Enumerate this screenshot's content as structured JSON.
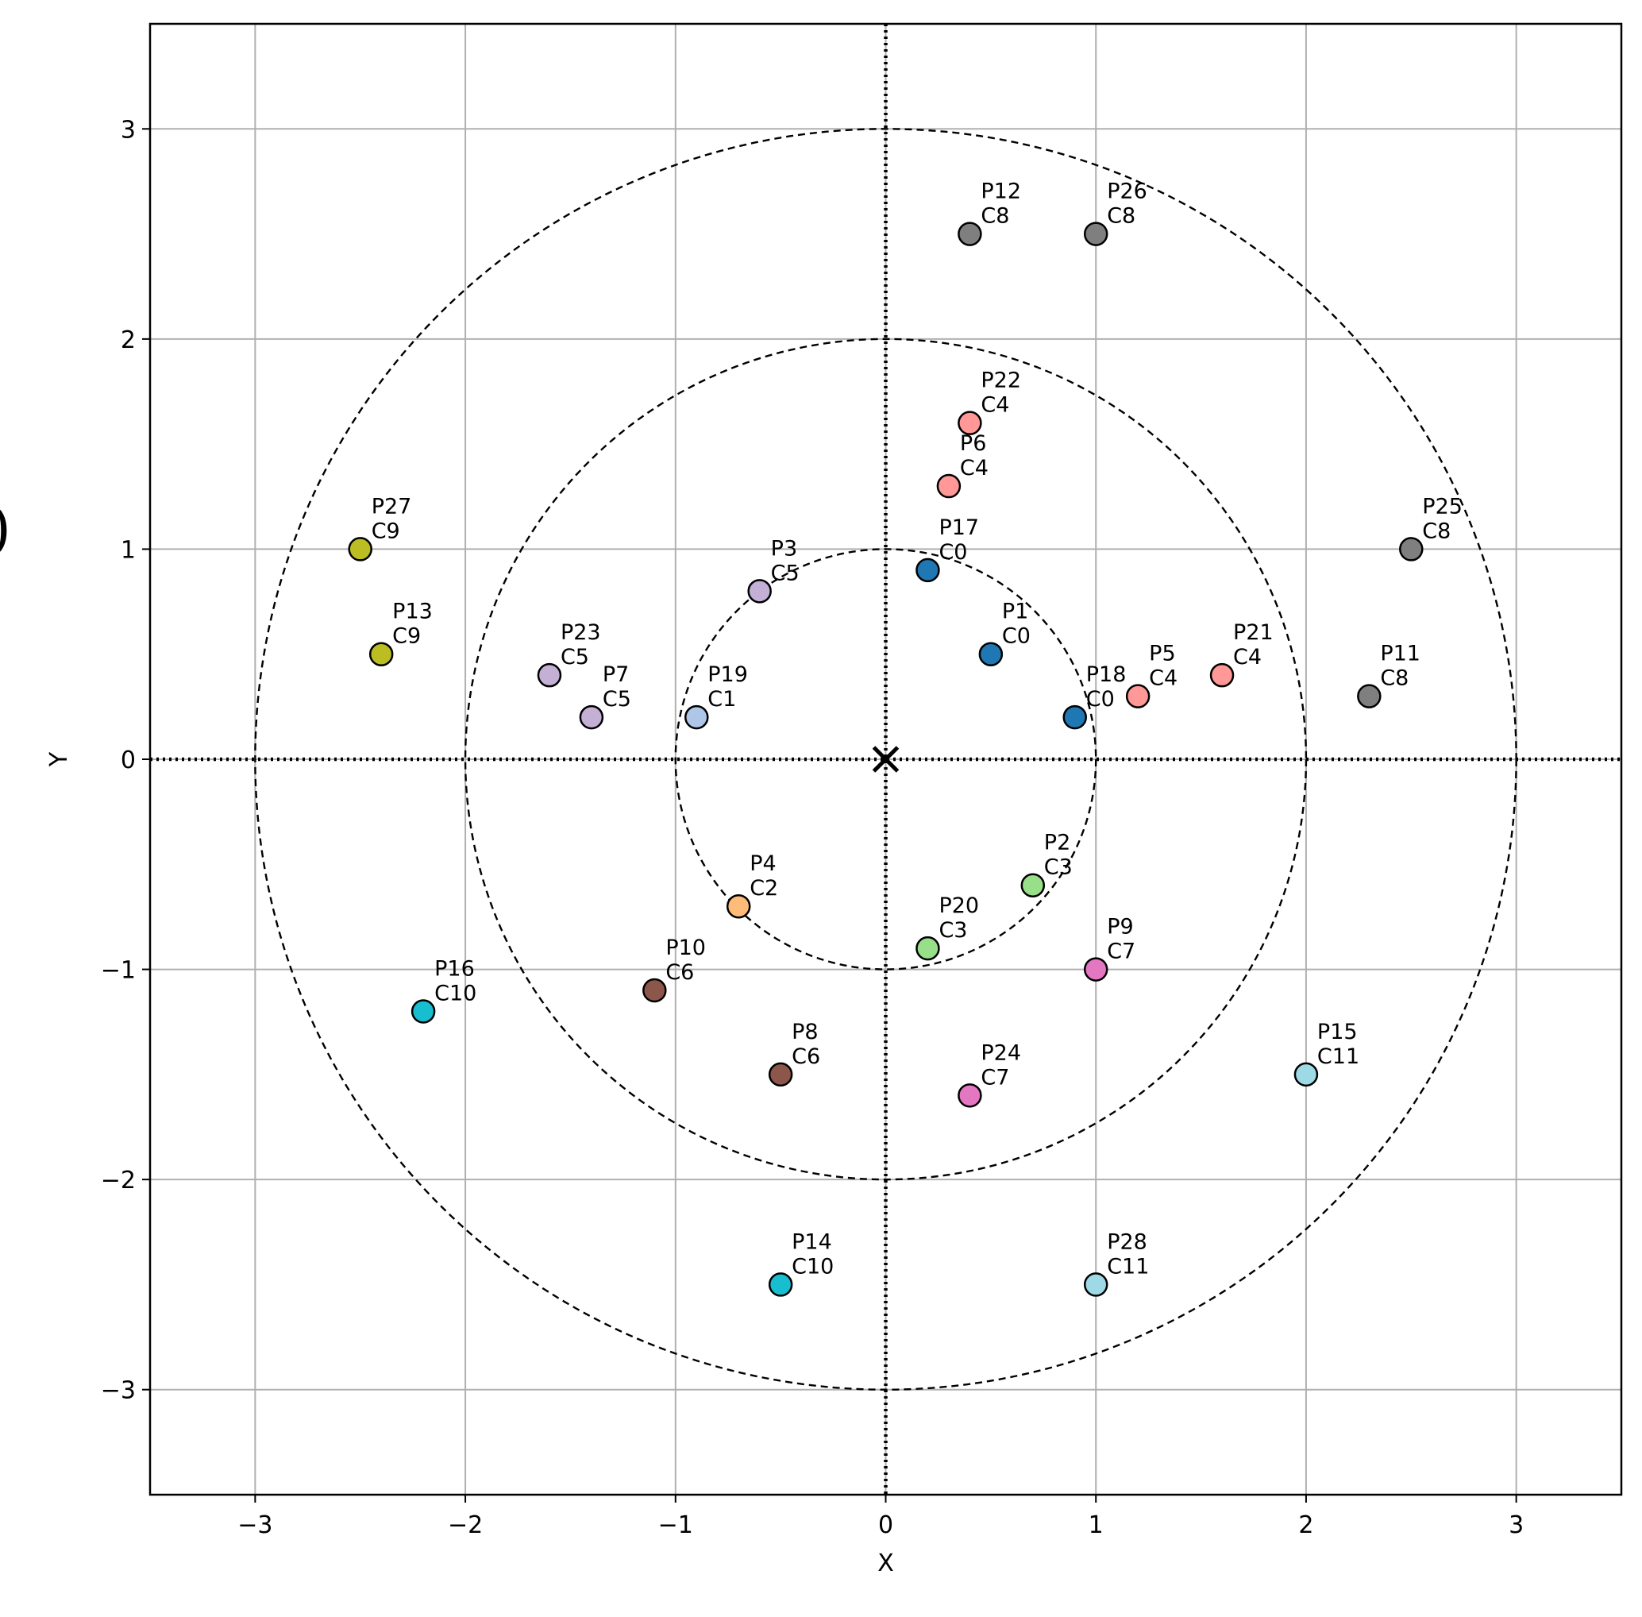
{
  "chart_data": {
    "type": "scatter",
    "xlabel": "X",
    "ylabel": "Y",
    "xlim": [
      -3.5,
      3.5
    ],
    "ylim": [
      -3.5,
      3.5
    ],
    "xticks": [
      "−3",
      "−2",
      "−1",
      "0",
      "1",
      "2",
      "3"
    ],
    "yticks": [
      "−3",
      "−2",
      "−1",
      "0",
      "1",
      "2",
      "3"
    ],
    "grid": true,
    "origin_marker": "x",
    "circles_radii": [
      1,
      2,
      3
    ],
    "margin_glyph": ")",
    "cluster_colors": {
      "C0": "#1f77b4",
      "C1": "#aec7e8",
      "C2": "#ffbb78",
      "C3": "#98df8a",
      "C4": "#ff9896",
      "C5": "#c5b0d5",
      "C6": "#8c564b",
      "C7": "#e377c2",
      "C8": "#7f7f7f",
      "C9": "#bcbd22",
      "C10": "#17becf",
      "C11": "#9edae5"
    },
    "points": [
      {
        "id": "P1",
        "cluster": "C0",
        "x": 0.5,
        "y": 0.5
      },
      {
        "id": "P2",
        "cluster": "C3",
        "x": 0.7,
        "y": -0.6
      },
      {
        "id": "P3",
        "cluster": "C5",
        "x": -0.6,
        "y": 0.8
      },
      {
        "id": "P4",
        "cluster": "C2",
        "x": -0.7,
        "y": -0.7
      },
      {
        "id": "P5",
        "cluster": "C4",
        "x": 1.2,
        "y": 0.3
      },
      {
        "id": "P6",
        "cluster": "C4",
        "x": 0.3,
        "y": 1.3
      },
      {
        "id": "P7",
        "cluster": "C5",
        "x": -1.4,
        "y": 0.2
      },
      {
        "id": "P8",
        "cluster": "C6",
        "x": -0.5,
        "y": -1.5
      },
      {
        "id": "P9",
        "cluster": "C7",
        "x": 1.0,
        "y": -1.0
      },
      {
        "id": "P10",
        "cluster": "C6",
        "x": -1.1,
        "y": -1.1
      },
      {
        "id": "P11",
        "cluster": "C8",
        "x": 2.3,
        "y": 0.3
      },
      {
        "id": "P12",
        "cluster": "C8",
        "x": 0.4,
        "y": 2.5
      },
      {
        "id": "P13",
        "cluster": "C9",
        "x": -2.4,
        "y": 0.5
      },
      {
        "id": "P14",
        "cluster": "C10",
        "x": -0.5,
        "y": -2.5
      },
      {
        "id": "P15",
        "cluster": "C11",
        "x": 2.0,
        "y": -1.5
      },
      {
        "id": "P16",
        "cluster": "C10",
        "x": -2.2,
        "y": -1.2
      },
      {
        "id": "P17",
        "cluster": "C0",
        "x": 0.2,
        "y": 0.9
      },
      {
        "id": "P18",
        "cluster": "C0",
        "x": 0.9,
        "y": 0.2
      },
      {
        "id": "P19",
        "cluster": "C1",
        "x": -0.9,
        "y": 0.2
      },
      {
        "id": "P20",
        "cluster": "C3",
        "x": 0.2,
        "y": -0.9
      },
      {
        "id": "P21",
        "cluster": "C4",
        "x": 1.6,
        "y": 0.4
      },
      {
        "id": "P22",
        "cluster": "C4",
        "x": 0.4,
        "y": 1.6
      },
      {
        "id": "P23",
        "cluster": "C5",
        "x": -1.6,
        "y": 0.4
      },
      {
        "id": "P24",
        "cluster": "C7",
        "x": 0.4,
        "y": -1.6
      },
      {
        "id": "P25",
        "cluster": "C8",
        "x": 2.5,
        "y": 1.0
      },
      {
        "id": "P26",
        "cluster": "C8",
        "x": 1.0,
        "y": 2.5
      },
      {
        "id": "P27",
        "cluster": "C9",
        "x": -2.5,
        "y": 1.0
      },
      {
        "id": "P28",
        "cluster": "C11",
        "x": 1.0,
        "y": -2.5
      }
    ]
  }
}
